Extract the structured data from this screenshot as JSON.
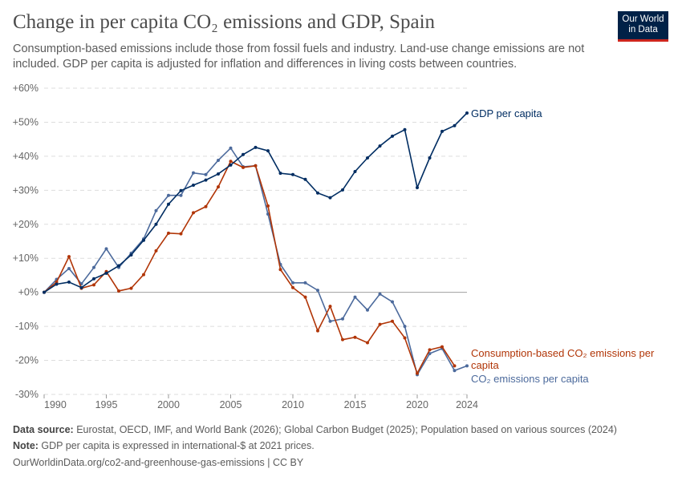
{
  "title": "Change in per capita CO₂ emissions and GDP, Spain",
  "subtitle": "Consumption-based emissions include those from fossil fuels and industry. Land-use change emissions are not included. GDP per capita is adjusted for inflation and differences in living costs between countries.",
  "logo": {
    "line1": "Our World",
    "line2": "in Data"
  },
  "footer": {
    "source_label": "Data source:",
    "source": " Eurostat, OECD, IMF, and World Bank (2026); Global Carbon Budget (2025); Population based on various sources (2024)",
    "note_label": "Note:",
    "note": " GDP per capita is expressed in international-$ at 2021 prices.",
    "url": "OurWorldinData.org/co2-and-greenhouse-gas-emissions | CC BY"
  },
  "chart_data": {
    "type": "line",
    "xlim": [
      1990,
      2024
    ],
    "ylim": [
      -30,
      60
    ],
    "yticks": [
      -30,
      -20,
      -10,
      0,
      10,
      20,
      30,
      40,
      50,
      60
    ],
    "ytick_labels": [
      "-30%",
      "-20%",
      "-10%",
      "+0%",
      "+10%",
      "+20%",
      "+30%",
      "+40%",
      "+50%",
      "+60%"
    ],
    "xticks": [
      1990,
      1995,
      2000,
      2005,
      2010,
      2015,
      2020,
      2024
    ],
    "xtick_labels": [
      "1990",
      "1995",
      "2000",
      "2005",
      "2010",
      "2015",
      "2020",
      "2024"
    ],
    "grid": "horizontal dashed",
    "x": [
      1990,
      1991,
      1992,
      1993,
      1994,
      1995,
      1996,
      1997,
      1998,
      1999,
      2000,
      2001,
      2002,
      2003,
      2004,
      2005,
      2006,
      2007,
      2008,
      2009,
      2010,
      2011,
      2012,
      2013,
      2014,
      2015,
      2016,
      2017,
      2018,
      2019,
      2020,
      2021,
      2022,
      2023,
      2024
    ],
    "series": [
      {
        "name": "GDP per capita",
        "color": "#002d62",
        "values": [
          0,
          2.4,
          3,
          1.4,
          4,
          5.6,
          7.8,
          11,
          15.3,
          20,
          25.9,
          29.9,
          31.5,
          33,
          34.8,
          37.4,
          40.5,
          42.6,
          41.6,
          35,
          34.6,
          33.2,
          29.2,
          27.8,
          30.1,
          35.5,
          39.5,
          43,
          45.9,
          47.8,
          30.8,
          39.5,
          47.3,
          49,
          52.7
        ]
      },
      {
        "name": "Consumption-based CO₂ emissions per capita",
        "color": "#b13507",
        "values": [
          0,
          3,
          10.5,
          1.2,
          2.2,
          6.1,
          0.4,
          1.2,
          5.2,
          12.2,
          17.4,
          17.2,
          23.4,
          25.2,
          31,
          38.5,
          36.7,
          37.2,
          25.4,
          6.7,
          1.4,
          -1.4,
          -11.3,
          -4.1,
          -13.9,
          -13.2,
          -14.8,
          -9.4,
          -8.5,
          -13.4,
          -23.8,
          -16.9,
          -16,
          -21.6,
          null
        ]
      },
      {
        "name": "CO₂ emissions per capita",
        "color": "#4c6a9c",
        "values": [
          0,
          3.8,
          7,
          2.5,
          7.3,
          12.8,
          7.3,
          11.5,
          15.7,
          24,
          28.5,
          28.5,
          35.1,
          34.6,
          38.8,
          42.4,
          36.9,
          37.2,
          23,
          8.2,
          2.8,
          2.8,
          0.6,
          -8.5,
          -7.8,
          -1.4,
          -5.2,
          -0.5,
          -2.8,
          -10,
          -24.2,
          -18,
          -16.5,
          -23,
          -21.6
        ]
      }
    ]
  }
}
